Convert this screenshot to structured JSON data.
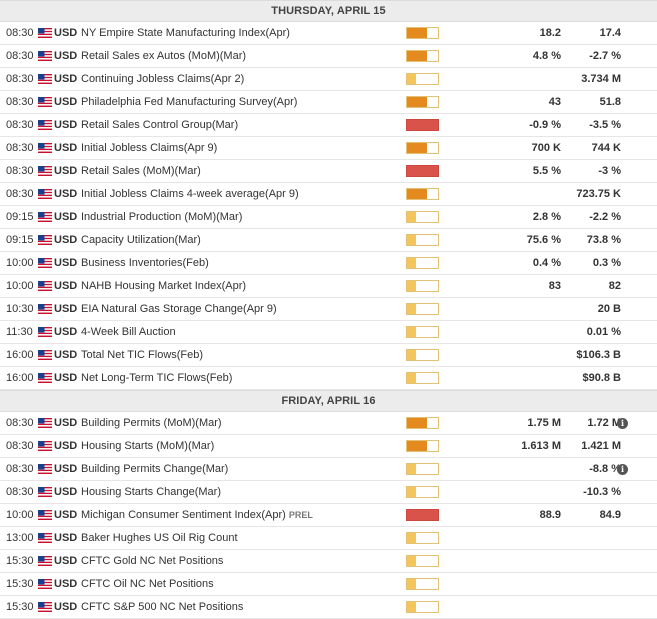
{
  "colors": {
    "low": "#f4c55c",
    "medium": "#e58a1e",
    "high": "#d9534a",
    "header_bg": "#ececec"
  },
  "sections": [
    {
      "title": "THURSDAY, APRIL 15",
      "events": [
        {
          "time": "08:30",
          "currency": "USD",
          "name": "NY Empire State Manufacturing Index(Apr)",
          "tag": "",
          "impact": "medium",
          "actual": "18.2",
          "consensus": "17.4",
          "info": false
        },
        {
          "time": "08:30",
          "currency": "USD",
          "name": "Retail Sales ex Autos (MoM)(Mar)",
          "tag": "",
          "impact": "medium",
          "actual": "4.8 %",
          "consensus": "-2.7 %",
          "info": false
        },
        {
          "time": "08:30",
          "currency": "USD",
          "name": "Continuing Jobless Claims(Apr 2)",
          "tag": "",
          "impact": "low",
          "actual": "",
          "consensus": "3.734 M",
          "info": false
        },
        {
          "time": "08:30",
          "currency": "USD",
          "name": "Philadelphia Fed Manufacturing Survey(Apr)",
          "tag": "",
          "impact": "medium",
          "actual": "43",
          "consensus": "51.8",
          "info": false
        },
        {
          "time": "08:30",
          "currency": "USD",
          "name": "Retail Sales Control Group(Mar)",
          "tag": "",
          "impact": "high",
          "actual": "-0.9 %",
          "consensus": "-3.5 %",
          "info": false
        },
        {
          "time": "08:30",
          "currency": "USD",
          "name": "Initial Jobless Claims(Apr 9)",
          "tag": "",
          "impact": "medium",
          "actual": "700 K",
          "consensus": "744 K",
          "info": false
        },
        {
          "time": "08:30",
          "currency": "USD",
          "name": "Retail Sales (MoM)(Mar)",
          "tag": "",
          "impact": "high",
          "actual": "5.5 %",
          "consensus": "-3 %",
          "info": false
        },
        {
          "time": "08:30",
          "currency": "USD",
          "name": "Initial Jobless Claims 4-week average(Apr 9)",
          "tag": "",
          "impact": "medium",
          "actual": "",
          "consensus": "723.75 K",
          "info": false
        },
        {
          "time": "09:15",
          "currency": "USD",
          "name": "Industrial Production (MoM)(Mar)",
          "tag": "",
          "impact": "low",
          "actual": "2.8 %",
          "consensus": "-2.2 %",
          "info": false
        },
        {
          "time": "09:15",
          "currency": "USD",
          "name": "Capacity Utilization(Mar)",
          "tag": "",
          "impact": "low",
          "actual": "75.6 %",
          "consensus": "73.8 %",
          "info": false
        },
        {
          "time": "10:00",
          "currency": "USD",
          "name": "Business Inventories(Feb)",
          "tag": "",
          "impact": "low",
          "actual": "0.4 %",
          "consensus": "0.3 %",
          "info": false
        },
        {
          "time": "10:00",
          "currency": "USD",
          "name": "NAHB Housing Market Index(Apr)",
          "tag": "",
          "impact": "low",
          "actual": "83",
          "consensus": "82",
          "info": false
        },
        {
          "time": "10:30",
          "currency": "USD",
          "name": "EIA Natural Gas Storage Change(Apr 9)",
          "tag": "",
          "impact": "low",
          "actual": "",
          "consensus": "20 B",
          "info": false
        },
        {
          "time": "11:30",
          "currency": "USD",
          "name": "4-Week Bill Auction",
          "tag": "",
          "impact": "low",
          "actual": "",
          "consensus": "0.01 %",
          "info": false
        },
        {
          "time": "16:00",
          "currency": "USD",
          "name": "Total Net TIC Flows(Feb)",
          "tag": "",
          "impact": "low",
          "actual": "",
          "consensus": "$106.3 B",
          "info": false
        },
        {
          "time": "16:00",
          "currency": "USD",
          "name": "Net Long-Term TIC Flows(Feb)",
          "tag": "",
          "impact": "low",
          "actual": "",
          "consensus": "$90.8 B",
          "info": false
        }
      ]
    },
    {
      "title": "FRIDAY, APRIL 16",
      "events": [
        {
          "time": "08:30",
          "currency": "USD",
          "name": "Building Permits (MoM)(Mar)",
          "tag": "",
          "impact": "medium",
          "actual": "1.75 M",
          "consensus": "1.72 M",
          "info": true
        },
        {
          "time": "08:30",
          "currency": "USD",
          "name": "Housing Starts (MoM)(Mar)",
          "tag": "",
          "impact": "medium",
          "actual": "1.613 M",
          "consensus": "1.421 M",
          "info": false
        },
        {
          "time": "08:30",
          "currency": "USD",
          "name": "Building Permits Change(Mar)",
          "tag": "",
          "impact": "low",
          "actual": "",
          "consensus": "-8.8 %",
          "info": true
        },
        {
          "time": "08:30",
          "currency": "USD",
          "name": "Housing Starts Change(Mar)",
          "tag": "",
          "impact": "low",
          "actual": "",
          "consensus": "-10.3 %",
          "info": false
        },
        {
          "time": "10:00",
          "currency": "USD",
          "name": "Michigan Consumer Sentiment Index(Apr)",
          "tag": "PREL",
          "impact": "high",
          "actual": "88.9",
          "consensus": "84.9",
          "info": false
        },
        {
          "time": "13:00",
          "currency": "USD",
          "name": "Baker Hughes US Oil Rig Count",
          "tag": "",
          "impact": "low",
          "actual": "",
          "consensus": "",
          "info": false
        },
        {
          "time": "15:30",
          "currency": "USD",
          "name": "CFTC Gold NC Net Positions",
          "tag": "",
          "impact": "low",
          "actual": "",
          "consensus": "",
          "info": false
        },
        {
          "time": "15:30",
          "currency": "USD",
          "name": "CFTC Oil NC Net Positions",
          "tag": "",
          "impact": "low",
          "actual": "",
          "consensus": "",
          "info": false
        },
        {
          "time": "15:30",
          "currency": "USD",
          "name": "CFTC S&P 500 NC Net Positions",
          "tag": "",
          "impact": "low",
          "actual": "",
          "consensus": "",
          "info": false
        }
      ]
    }
  ],
  "icons": {
    "flag": "us-flag-icon",
    "info": "info-icon"
  }
}
